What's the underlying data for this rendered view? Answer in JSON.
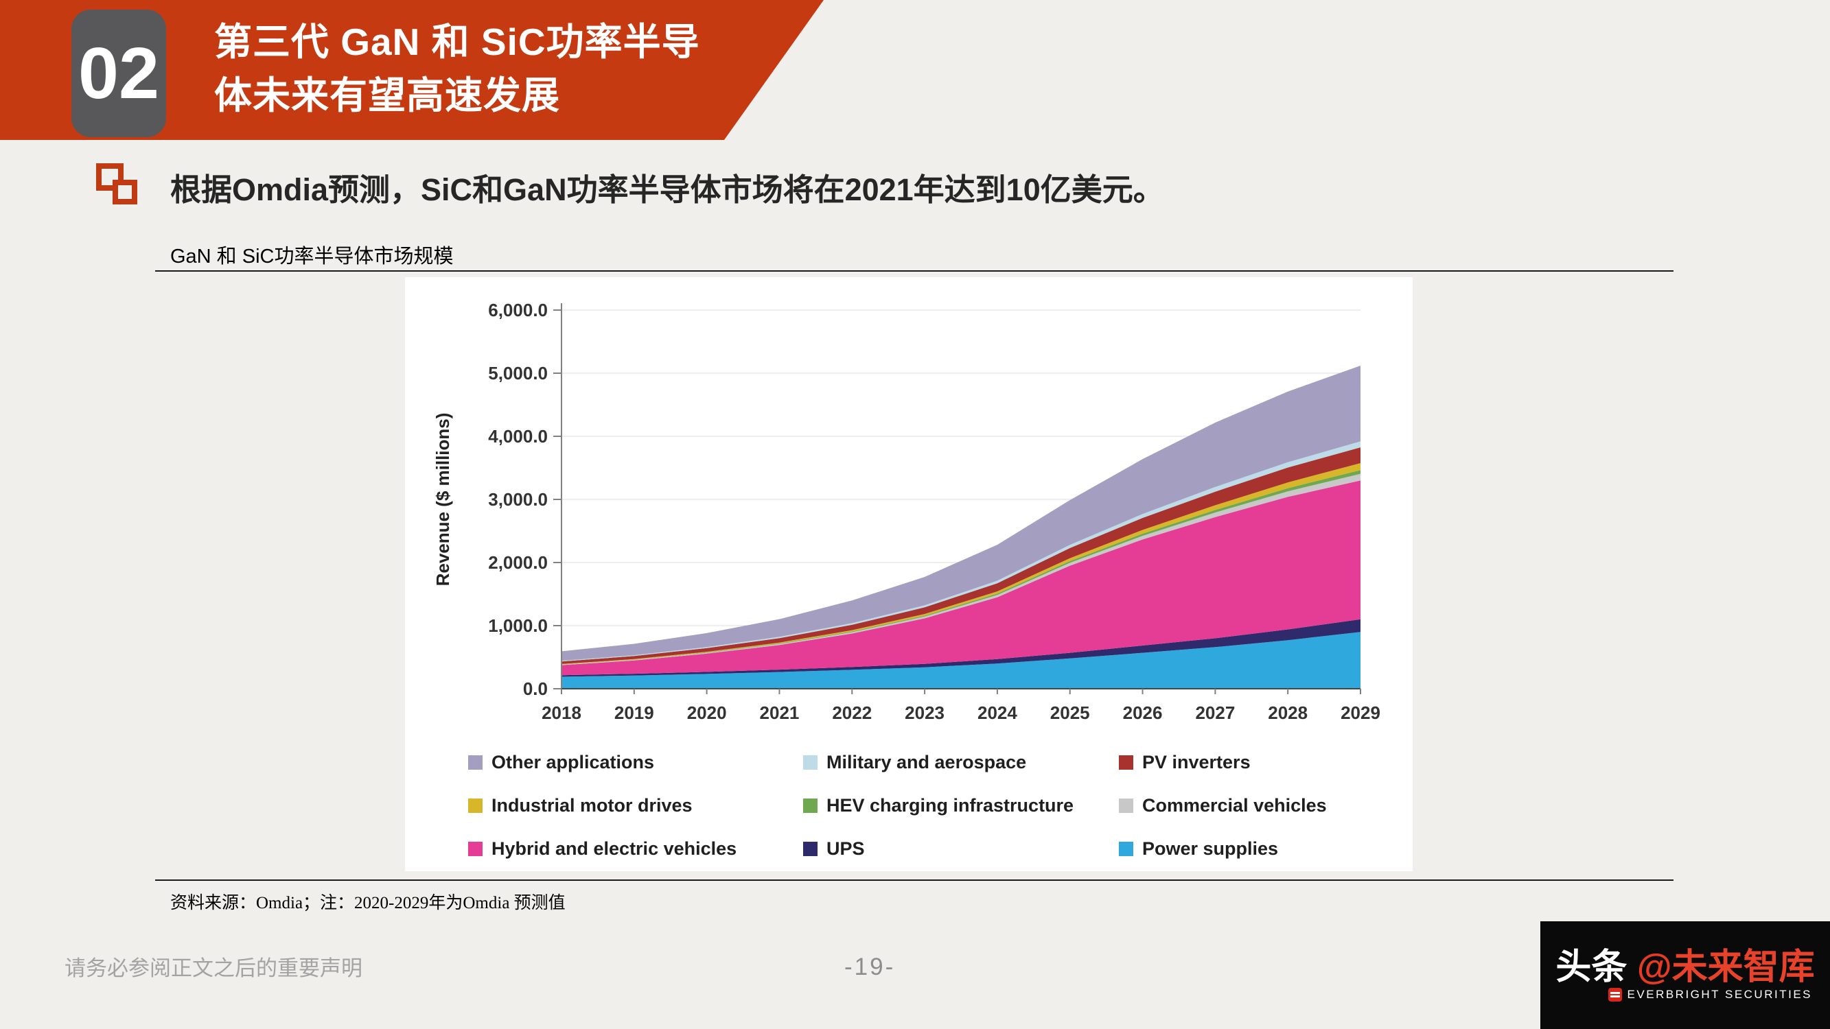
{
  "header": {
    "section_number": "02",
    "title_line1": "第三代 GaN 和 SiC功率半导",
    "title_line2": "体未来有望高速发展"
  },
  "bullet": {
    "text": "根据Omdia预测，SiC和GaN功率半导体市场将在2021年达到10亿美元。"
  },
  "chart_section": {
    "label": "GaN 和 SiC功率半导体市场规模"
  },
  "chart_data": {
    "type": "area",
    "stacked": true,
    "title": "GaN 和 SiC功率半导体市场规模",
    "ylabel": "Revenue ($ millions)",
    "xlabel": "",
    "x": [
      "2018",
      "2019",
      "2020",
      "2021",
      "2022",
      "2023",
      "2024",
      "2025",
      "2026",
      "2027",
      "2028",
      "2029"
    ],
    "ylim": [
      0,
      6000
    ],
    "ytick_step": 1000,
    "ytick_labels": [
      "0.0",
      "1,000.0",
      "2,000.0",
      "3,000.0",
      "4,000.0",
      "5,000.0",
      "6,000.0"
    ],
    "grid": true,
    "legend_position": "bottom",
    "legend_columns": 3,
    "series": [
      {
        "key": "power_supplies",
        "name": "Power supplies",
        "color": "#2fa8dd",
        "values": [
          190,
          210,
          235,
          265,
          300,
          340,
          400,
          480,
          570,
          660,
          770,
          900
        ]
      },
      {
        "key": "ups",
        "name": "UPS",
        "color": "#2f2a6b",
        "values": [
          25,
          28,
          32,
          38,
          45,
          55,
          70,
          90,
          115,
          140,
          170,
          200
        ]
      },
      {
        "key": "hybrid_ev",
        "name": "Hybrid and electric vehicles",
        "color": "#e53d96",
        "values": [
          160,
          210,
          290,
          390,
          530,
          720,
          980,
          1380,
          1680,
          1920,
          2100,
          2200
        ]
      },
      {
        "key": "commercial_vehicles",
        "name": "Commercial vehicles",
        "color": "#c8c8c8",
        "values": [
          8,
          10,
          12,
          16,
          22,
          28,
          36,
          46,
          58,
          72,
          88,
          105
        ]
      },
      {
        "key": "hev_charging",
        "name": "HEV charging infrastructure",
        "color": "#6fa84f",
        "values": [
          3,
          4,
          6,
          8,
          11,
          15,
          20,
          26,
          33,
          41,
          50,
          60
        ]
      },
      {
        "key": "industrial_motor_drives",
        "name": "Industrial motor drives",
        "color": "#d8b62a",
        "values": [
          6,
          8,
          11,
          15,
          20,
          27,
          36,
          47,
          60,
          75,
          92,
          110
        ]
      },
      {
        "key": "pv_inverters",
        "name": "PV inverters",
        "color": "#a8322e",
        "values": [
          40,
          48,
          58,
          70,
          85,
          105,
          130,
          160,
          190,
          215,
          235,
          250
        ]
      },
      {
        "key": "military_aerospace",
        "name": "Military and aerospace",
        "color": "#bedbe8",
        "values": [
          12,
          14,
          17,
          21,
          26,
          32,
          40,
          50,
          62,
          74,
          84,
          95
        ]
      },
      {
        "key": "other_applications",
        "name": "Other applications",
        "color": "#a49ec0",
        "values": [
          150,
          180,
          220,
          280,
          360,
          450,
          570,
          710,
          870,
          1020,
          1120,
          1200
        ]
      }
    ]
  },
  "source": {
    "text": "资料来源：Omdia；注：2020-2029年为Omdia 预测值"
  },
  "footer": {
    "disclaimer": "请务必参阅正文之后的重要声明",
    "page_number": "-19-",
    "brand": {
      "toutiao": "头条",
      "at": "@",
      "name": "未来智库",
      "subbrand": "EVERBRIGHT SECURITIES"
    }
  }
}
